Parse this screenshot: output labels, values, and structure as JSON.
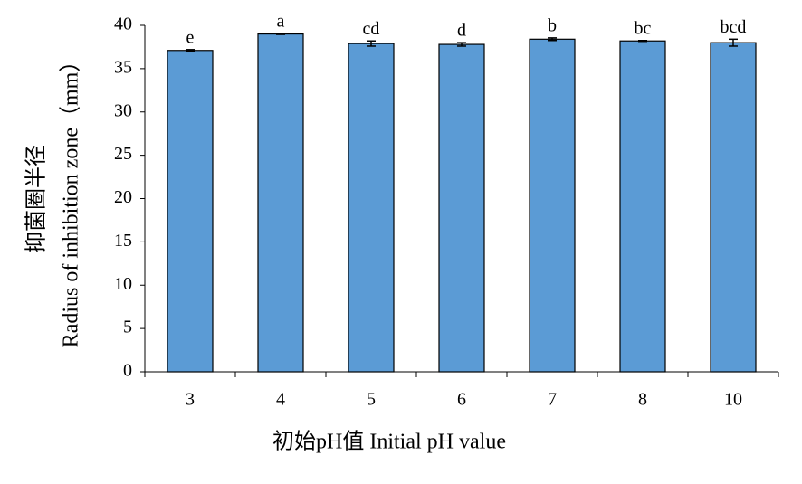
{
  "chart_data": {
    "type": "bar",
    "x_label": "初始pH值 Initial pH value",
    "y_label": [
      "抑菌圈半径",
      "Radius of inhibition zone（mm）"
    ],
    "categories": [
      "3",
      "4",
      "5",
      "6",
      "7",
      "8",
      "10"
    ],
    "values": [
      37.1,
      39.0,
      37.9,
      37.8,
      38.4,
      38.2,
      38.0
    ],
    "errors": [
      0.1,
      0.05,
      0.3,
      0.2,
      0.15,
      0.05,
      0.4
    ],
    "annotations": [
      "e",
      "a",
      "cd",
      "d",
      "b",
      "bc",
      "bcd"
    ],
    "color": "#5b9bd5",
    "ylim": [
      0,
      40
    ],
    "yticks": [
      0,
      5,
      10,
      15,
      20,
      25,
      30,
      35,
      40
    ],
    "grid": false
  }
}
